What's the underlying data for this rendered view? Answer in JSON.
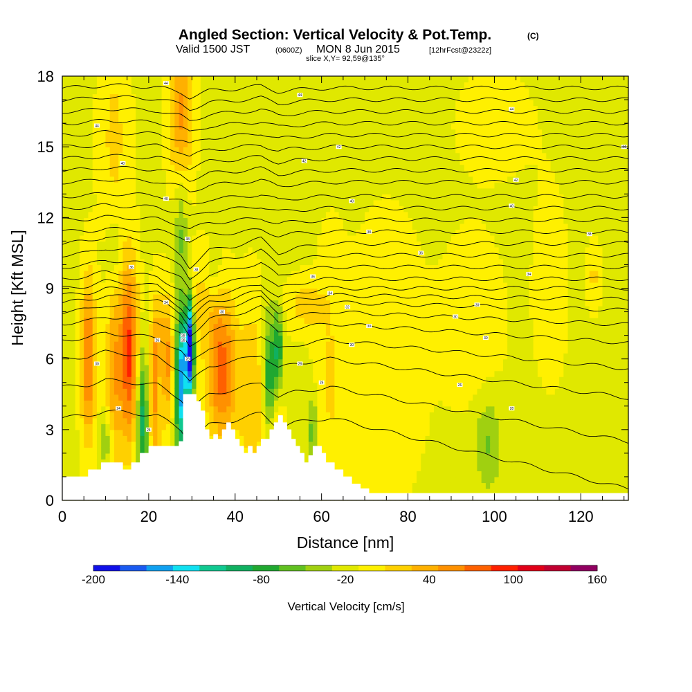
{
  "header": {
    "title": "Angled Section: Vertical Velocity & Pot.Temp.",
    "title_suffix": "(C)",
    "valid_prefix": "Valid 1500 JST",
    "valid_utc": "(0600Z)",
    "valid_date": "MON 8 Jun 2015",
    "forecast": "[12hrFcst@2322z]",
    "slice": "slice X,Y= 92,59@135°"
  },
  "chart_data": {
    "type": "heatmap",
    "title": "Angled Section: Vertical Velocity & Pot.Temp.",
    "xlabel": "Distance [nm]",
    "ylabel": "Height [Kft MSL]",
    "xlim": [
      0,
      131
    ],
    "ylim": [
      0,
      18
    ],
    "x_ticks": [
      0,
      20,
      40,
      60,
      80,
      100,
      120
    ],
    "x_tick_labels": [
      "0",
      "20",
      "40",
      "60",
      "80",
      "100",
      "120"
    ],
    "y_ticks": [
      0,
      3,
      6,
      9,
      12,
      15,
      18
    ],
    "y_tick_labels": [
      "0",
      "3",
      "6",
      "9",
      "12",
      "15",
      "18"
    ],
    "background_value": -5,
    "features": [
      {
        "kind": "updraft",
        "x": 6,
        "y": 6.0,
        "sx": 1.2,
        "sy": 2.5,
        "value": 90
      },
      {
        "kind": "updraft",
        "x": 12,
        "y": 5.5,
        "sx": 1.3,
        "sy": 3.0,
        "value": 60
      },
      {
        "kind": "updraft",
        "x": 15.5,
        "y": 6.2,
        "sx": 1.5,
        "sy": 2.8,
        "value": 110
      },
      {
        "kind": "updraft",
        "x": 22,
        "y": 4.8,
        "sx": 1.2,
        "sy": 2.3,
        "value": 120
      },
      {
        "kind": "updraft",
        "x": 24.5,
        "y": 6.0,
        "sx": 1.0,
        "sy": 1.8,
        "value": 60
      },
      {
        "kind": "updraft",
        "x": 27.5,
        "y": 16.5,
        "sx": 2.0,
        "sy": 2.2,
        "value": 70
      },
      {
        "kind": "updraft",
        "x": 12,
        "y": 15.5,
        "sx": 2.5,
        "sy": 3.0,
        "value": 30
      },
      {
        "kind": "updraft",
        "x": 37,
        "y": 5.5,
        "sx": 2.5,
        "sy": 2.2,
        "value": 95
      },
      {
        "kind": "updraft",
        "x": 44,
        "y": 4.5,
        "sx": 2.0,
        "sy": 3.0,
        "value": 40
      },
      {
        "kind": "updraft",
        "x": 49,
        "y": 2.8,
        "sx": 1.4,
        "sy": 1.2,
        "value": 50
      },
      {
        "kind": "updraft",
        "x": 56,
        "y": 8.3,
        "sx": 3.0,
        "sy": 0.8,
        "value": 35
      },
      {
        "kind": "updraft",
        "x": 32,
        "y": 8.5,
        "sx": 3.0,
        "sy": 1.5,
        "value": 30
      },
      {
        "kind": "updraft",
        "x": 62,
        "y": 5.0,
        "sx": 2.5,
        "sy": 4.0,
        "value": 25
      },
      {
        "kind": "updraft",
        "x": 75,
        "y": 6.0,
        "sx": 6.0,
        "sy": 4.0,
        "value": 22
      },
      {
        "kind": "updraft",
        "x": 95,
        "y": 7.5,
        "sx": 5.0,
        "sy": 2.5,
        "value": 20
      },
      {
        "kind": "updraft",
        "x": 113,
        "y": 9.0,
        "sx": 3.0,
        "sy": 3.0,
        "value": 15
      },
      {
        "kind": "updraft",
        "x": 123,
        "y": 9.5,
        "sx": 1.0,
        "sy": 1.0,
        "value": 30
      },
      {
        "kind": "updraft",
        "x": 100,
        "y": 16.0,
        "sx": 8.0,
        "sy": 2.0,
        "value": 10
      },
      {
        "kind": "downdraft",
        "x": 18.5,
        "y": 3.5,
        "sx": 1.0,
        "sy": 2.0,
        "value": -90
      },
      {
        "kind": "downdraft",
        "x": 22.5,
        "y": 4.5,
        "sx": 0.8,
        "sy": 1.6,
        "value": -80
      },
      {
        "kind": "downdraft",
        "x": 27.5,
        "y": 5.0,
        "sx": 0.9,
        "sy": 2.2,
        "value": -150
      },
      {
        "kind": "downdraft",
        "x": 29.5,
        "y": 6.5,
        "sx": 0.7,
        "sy": 1.5,
        "value": -200
      },
      {
        "kind": "downdraft",
        "x": 27.5,
        "y": 11.5,
        "sx": 1.0,
        "sy": 1.8,
        "value": -40
      },
      {
        "kind": "downdraft",
        "x": 12,
        "y": 10.5,
        "sx": 1.2,
        "sy": 1.2,
        "value": -30
      },
      {
        "kind": "downdraft",
        "x": 35,
        "y": 9.5,
        "sx": 1.5,
        "sy": 0.8,
        "value": -25
      },
      {
        "kind": "downdraft",
        "x": 48,
        "y": 5.0,
        "sx": 1.0,
        "sy": 2.0,
        "value": -80
      },
      {
        "kind": "downdraft",
        "x": 50,
        "y": 6.5,
        "sx": 0.8,
        "sy": 1.2,
        "value": -70
      },
      {
        "kind": "downdraft",
        "x": 58,
        "y": 3.0,
        "sx": 0.6,
        "sy": 1.0,
        "value": -60
      },
      {
        "kind": "downdraft",
        "x": 98.5,
        "y": 2.5,
        "sx": 2.2,
        "sy": 1.4,
        "value": -38
      },
      {
        "kind": "downdraft",
        "x": 10,
        "y": 2.5,
        "sx": 1.2,
        "sy": 0.7,
        "value": -40
      }
    ],
    "terrain": {
      "x": [
        0,
        1,
        6,
        7,
        9,
        10,
        11,
        13,
        14,
        16,
        18,
        19,
        20,
        27,
        28,
        29,
        30,
        31,
        32,
        33,
        34,
        35,
        36,
        37,
        38,
        39,
        40,
        41,
        42,
        43,
        44,
        45,
        46,
        47,
        48,
        49,
        50,
        51,
        52,
        53,
        54,
        55,
        56,
        57,
        58,
        59,
        60,
        61,
        62,
        63,
        64,
        65,
        66,
        67,
        68,
        69,
        70,
        71,
        131
      ],
      "elevation": [
        1.0,
        1.0,
        1.3,
        1.3,
        1.6,
        1.6,
        1.6,
        1.6,
        1.3,
        1.6,
        2.0,
        2.0,
        2.3,
        2.5,
        4.5,
        4.5,
        4.5,
        4.2,
        3.8,
        3.0,
        2.6,
        2.8,
        2.6,
        3.0,
        3.3,
        3.0,
        2.6,
        2.3,
        2.0,
        2.3,
        2.0,
        2.3,
        2.6,
        2.6,
        3.0,
        3.3,
        3.6,
        3.3,
        3.0,
        2.6,
        2.3,
        2.0,
        1.6,
        1.9,
        2.3,
        2.3,
        2.0,
        1.6,
        1.6,
        1.3,
        1.3,
        1.0,
        1.0,
        0.7,
        0.7,
        0.5,
        0.5,
        0.3,
        0.3
      ]
    },
    "contours": {
      "variable": "Pot.Temp. (C)",
      "x_nodes": [
        0,
        6,
        10,
        16,
        22,
        27.5,
        29.5,
        34,
        40,
        46,
        50,
        54,
        62,
        75,
        90,
        105,
        131
      ],
      "base_levels": [
        3.5,
        4.8,
        6.0,
        6.8,
        7.5,
        8.0,
        8.4,
        8.7,
        9.0,
        9.4,
        9.9,
        10.4,
        10.9,
        11.4,
        11.9,
        12.4,
        12.9,
        13.5,
        14.0,
        14.5,
        15.0,
        15.5,
        16.0,
        16.5,
        17.0,
        17.5
      ],
      "perturbation": [
        0,
        0.1,
        0.3,
        0.2,
        0.1,
        -0.5,
        -1.0,
        -0.3,
        -0.1,
        0.2,
        -0.4,
        -0.2,
        0,
        0,
        0,
        0,
        0
      ]
    },
    "contour_labels": [
      {
        "x": 24,
        "y": 17.7,
        "text": "44"
      },
      {
        "x": 55,
        "y": 17.2,
        "text": "44"
      },
      {
        "x": 104,
        "y": 16.6,
        "text": "44"
      },
      {
        "x": 8,
        "y": 15.9,
        "text": "44"
      },
      {
        "x": 64,
        "y": 15.0,
        "text": "42"
      },
      {
        "x": 130,
        "y": 15.0,
        "text": "44"
      },
      {
        "x": 14,
        "y": 14.3,
        "text": "40"
      },
      {
        "x": 56,
        "y": 14.4,
        "text": "42"
      },
      {
        "x": 105,
        "y": 13.6,
        "text": "42"
      },
      {
        "x": 24,
        "y": 12.8,
        "text": "40"
      },
      {
        "x": 67,
        "y": 12.7,
        "text": "40"
      },
      {
        "x": 104,
        "y": 12.5,
        "text": "40"
      },
      {
        "x": 29,
        "y": 11.1,
        "text": "38"
      },
      {
        "x": 71,
        "y": 11.4,
        "text": "38"
      },
      {
        "x": 122,
        "y": 11.3,
        "text": "38"
      },
      {
        "x": 16,
        "y": 9.9,
        "text": "36"
      },
      {
        "x": 58,
        "y": 9.5,
        "text": "36"
      },
      {
        "x": 83,
        "y": 10.5,
        "text": "36"
      },
      {
        "x": 31,
        "y": 9.8,
        "text": "38"
      },
      {
        "x": 62,
        "y": 8.8,
        "text": "34"
      },
      {
        "x": 108,
        "y": 9.6,
        "text": "34"
      },
      {
        "x": 24,
        "y": 8.4,
        "text": "34"
      },
      {
        "x": 66,
        "y": 8.2,
        "text": "32"
      },
      {
        "x": 96,
        "y": 8.3,
        "text": "30"
      },
      {
        "x": 37,
        "y": 8.0,
        "text": "30"
      },
      {
        "x": 71,
        "y": 7.4,
        "text": "30"
      },
      {
        "x": 98,
        "y": 6.9,
        "text": "30"
      },
      {
        "x": 28,
        "y": 6.8,
        "text": "28"
      },
      {
        "x": 91,
        "y": 7.8,
        "text": "30"
      },
      {
        "x": 8,
        "y": 5.8,
        "text": "30"
      },
      {
        "x": 28,
        "y": 7.0,
        "text": "28"
      },
      {
        "x": 67,
        "y": 6.6,
        "text": "30"
      },
      {
        "x": 29,
        "y": 6.0,
        "text": "28"
      },
      {
        "x": 55,
        "y": 5.8,
        "text": "28"
      },
      {
        "x": 92,
        "y": 4.9,
        "text": "26"
      },
      {
        "x": 13,
        "y": 3.9,
        "text": "24"
      },
      {
        "x": 60,
        "y": 5.0,
        "text": "26"
      },
      {
        "x": 104,
        "y": 3.9,
        "text": "28"
      },
      {
        "x": 20,
        "y": 3.0,
        "text": "24"
      },
      {
        "x": 22,
        "y": 6.8,
        "text": "26"
      }
    ]
  },
  "colorbar": {
    "title": "Vertical Velocity [cm/s]",
    "min": -200,
    "max": 160,
    "step": 20,
    "colors": [
      "#1010e8",
      "#1a5af0",
      "#10a0f0",
      "#10e0f0",
      "#10c890",
      "#10b060",
      "#20a830",
      "#60c020",
      "#a0d010",
      "#e0e800",
      "#fff000",
      "#ffd000",
      "#ffb000",
      "#ff9000",
      "#ff6000",
      "#ff2000",
      "#e00018",
      "#c00030",
      "#900060"
    ],
    "tick_values": [
      -200,
      -140,
      -80,
      -20,
      40,
      100,
      160
    ],
    "tick_labels": [
      "-200",
      "-140",
      "-80",
      "-20",
      "40",
      "100",
      "160"
    ]
  }
}
